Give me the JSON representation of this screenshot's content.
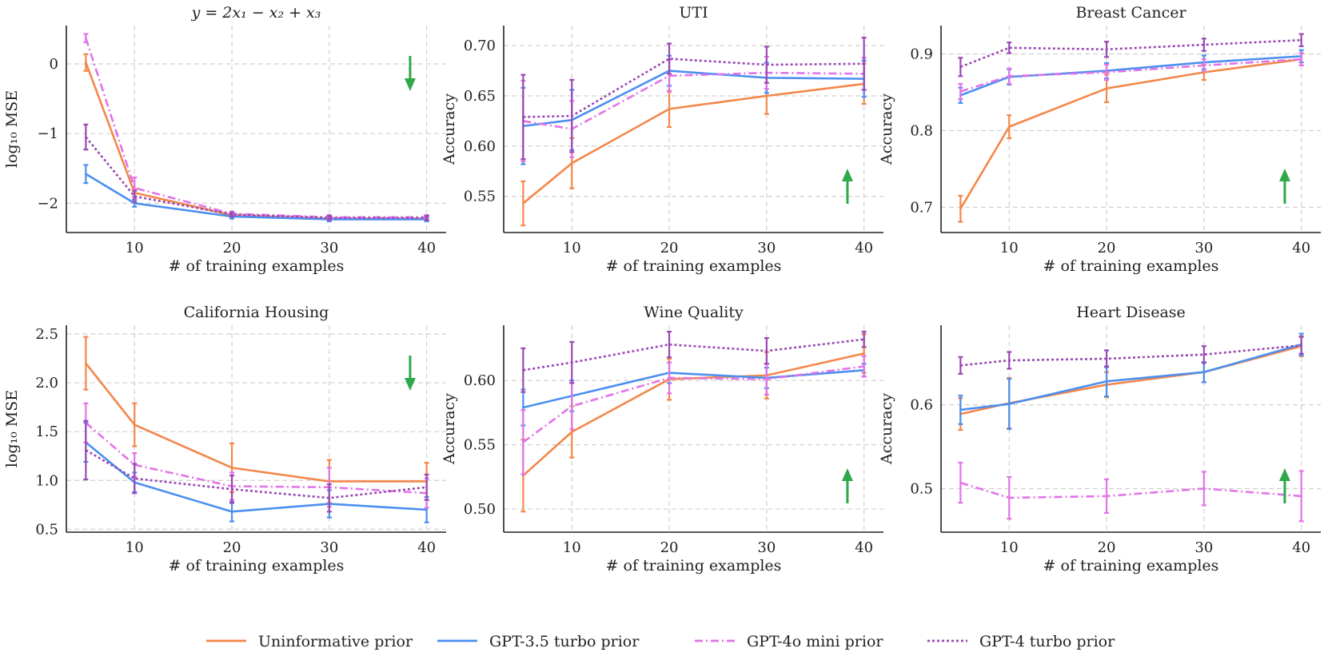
{
  "colors": {
    "uninformative": "#f4874b",
    "gpt35": "#4c8ff0",
    "gpt4omini": "#e273e8",
    "gpt4turbo": "#9a49b4",
    "arrow": "#2ea84a"
  },
  "legend": [
    {
      "key": "uninformative",
      "label": "Uninformative prior",
      "dash": "solid"
    },
    {
      "key": "gpt35",
      "label": "GPT-3.5 turbo prior",
      "dash": "solid"
    },
    {
      "key": "gpt4omini",
      "label": "GPT-4o mini prior",
      "dash": "dashdot"
    },
    {
      "key": "gpt4turbo",
      "label": "GPT-4 turbo prior",
      "dash": "dotted"
    }
  ],
  "chart_data": [
    {
      "type": "line",
      "title": "y = 2x₁ − x₂ + x₃",
      "xlabel": "# of training examples",
      "ylabel": "log₁₀ MSE",
      "x": [
        5,
        10,
        20,
        30,
        40
      ],
      "xlim": [
        3,
        42
      ],
      "xticks": [
        10,
        20,
        30,
        40
      ],
      "ylim": [
        -2.42,
        0.55
      ],
      "yticks": [
        0,
        -1,
        -2
      ],
      "ytick_labels": [
        "0",
        "−1",
        "−2"
      ],
      "arrow": "down",
      "series": [
        {
          "key": "uninformative",
          "values": [
            0.02,
            -1.85,
            -2.17,
            -2.22,
            -2.22
          ],
          "err": [
            0.12,
            0.05,
            0.03,
            0.03,
            0.03
          ]
        },
        {
          "key": "gpt35",
          "values": [
            -1.58,
            -2.0,
            -2.19,
            -2.23,
            -2.23
          ],
          "err": [
            0.13,
            0.05,
            0.03,
            0.03,
            0.03
          ]
        },
        {
          "key": "gpt4omini",
          "values": [
            0.37,
            -1.78,
            -2.15,
            -2.2,
            -2.2
          ],
          "err": [
            0.06,
            0.15,
            0.03,
            0.03,
            0.03
          ]
        },
        {
          "key": "gpt4turbo",
          "values": [
            -1.05,
            -1.9,
            -2.16,
            -2.21,
            -2.21
          ],
          "err": [
            0.18,
            0.08,
            0.03,
            0.03,
            0.03
          ]
        }
      ]
    },
    {
      "type": "line",
      "title": "UTI",
      "xlabel": "# of training examples",
      "ylabel": "Accuracy",
      "x": [
        5,
        10,
        20,
        30,
        40
      ],
      "xlim": [
        3,
        42
      ],
      "xticks": [
        10,
        20,
        30,
        40
      ],
      "ylim": [
        0.514,
        0.72
      ],
      "yticks": [
        0.55,
        0.6,
        0.65,
        0.7
      ],
      "ytick_labels": [
        "0.55",
        "0.60",
        "0.65",
        "0.70"
      ],
      "arrow": "up",
      "series": [
        {
          "key": "uninformative",
          "values": [
            0.543,
            0.583,
            0.637,
            0.65,
            0.662
          ],
          "err": [
            0.022,
            0.025,
            0.018,
            0.018,
            0.02
          ]
        },
        {
          "key": "gpt35",
          "values": [
            0.62,
            0.626,
            0.675,
            0.668,
            0.667
          ],
          "err": [
            0.038,
            0.03,
            0.015,
            0.015,
            0.018
          ]
        },
        {
          "key": "gpt4omini",
          "values": [
            0.625,
            0.617,
            0.67,
            0.673,
            0.672
          ],
          "err": [
            0.04,
            0.028,
            0.016,
            0.016,
            0.016
          ]
        },
        {
          "key": "gpt4turbo",
          "values": [
            0.629,
            0.63,
            0.687,
            0.681,
            0.682
          ],
          "err": [
            0.042,
            0.036,
            0.015,
            0.018,
            0.026
          ]
        }
      ]
    },
    {
      "type": "line",
      "title": "Breast Cancer",
      "xlabel": "# of training examples",
      "ylabel": "Accuracy",
      "x": [
        5,
        10,
        20,
        30,
        40
      ],
      "xlim": [
        3,
        42
      ],
      "xticks": [
        10,
        20,
        30,
        40
      ],
      "ylim": [
        0.667,
        0.937
      ],
      "yticks": [
        0.7,
        0.8,
        0.9
      ],
      "ytick_labels": [
        "0.7",
        "0.8",
        "0.9"
      ],
      "arrow": "up",
      "series": [
        {
          "key": "uninformative",
          "values": [
            0.698,
            0.805,
            0.855,
            0.876,
            0.893
          ],
          "err": [
            0.017,
            0.015,
            0.018,
            0.01,
            0.008
          ]
        },
        {
          "key": "gpt35",
          "values": [
            0.846,
            0.87,
            0.878,
            0.889,
            0.897
          ],
          "err": [
            0.01,
            0.01,
            0.01,
            0.009,
            0.008
          ]
        },
        {
          "key": "gpt4omini",
          "values": [
            0.851,
            0.871,
            0.876,
            0.885,
            0.893
          ],
          "err": [
            0.01,
            0.01,
            0.01,
            0.008,
            0.008
          ]
        },
        {
          "key": "gpt4turbo",
          "values": [
            0.883,
            0.908,
            0.906,
            0.912,
            0.918
          ],
          "err": [
            0.012,
            0.007,
            0.01,
            0.008,
            0.008
          ]
        }
      ]
    },
    {
      "type": "line",
      "title": "California Housing",
      "xlabel": "# of training examples",
      "ylabel": "log₁₀ MSE",
      "x": [
        5,
        10,
        20,
        30,
        40
      ],
      "xlim": [
        3,
        42
      ],
      "xticks": [
        10,
        20,
        30,
        40
      ],
      "ylim": [
        0.47,
        2.59
      ],
      "yticks": [
        0.5,
        1.0,
        1.5,
        2.0,
        2.5
      ],
      "ytick_labels": [
        "0.5",
        "1.0",
        "1.5",
        "2.0",
        "2.5"
      ],
      "arrow": "down",
      "series": [
        {
          "key": "uninformative",
          "values": [
            2.2,
            1.57,
            1.13,
            0.99,
            0.99
          ],
          "err": [
            0.27,
            0.22,
            0.25,
            0.22,
            0.19
          ]
        },
        {
          "key": "gpt35",
          "values": [
            1.39,
            0.98,
            0.68,
            0.76,
            0.7
          ],
          "err": [
            0.2,
            0.1,
            0.1,
            0.14,
            0.13
          ]
        },
        {
          "key": "gpt4omini",
          "values": [
            1.59,
            1.16,
            0.94,
            0.93,
            0.87
          ],
          "err": [
            0.2,
            0.12,
            0.14,
            0.2,
            0.15
          ]
        },
        {
          "key": "gpt4turbo",
          "values": [
            1.31,
            1.02,
            0.91,
            0.82,
            0.93
          ],
          "err": [
            0.3,
            0.15,
            0.14,
            0.14,
            0.13
          ]
        }
      ]
    },
    {
      "type": "line",
      "title": "Wine Quality",
      "xlabel": "# of training examples",
      "ylabel": "Accuracy",
      "x": [
        5,
        10,
        20,
        30,
        40
      ],
      "xlim": [
        3,
        42
      ],
      "xticks": [
        10,
        20,
        30,
        40
      ],
      "ylim": [
        0.482,
        0.643
      ],
      "yticks": [
        0.5,
        0.55,
        0.6
      ],
      "ytick_labels": [
        "0.50",
        "0.55",
        "0.60"
      ],
      "arrow": "up",
      "series": [
        {
          "key": "uninformative",
          "values": [
            0.526,
            0.56,
            0.601,
            0.604,
            0.621
          ],
          "err": [
            0.028,
            0.02,
            0.016,
            0.018,
            0.015
          ]
        },
        {
          "key": "gpt35",
          "values": [
            0.579,
            0.588,
            0.606,
            0.602,
            0.608
          ],
          "err": [
            0.014,
            0.012,
            0.008,
            0.008,
            0.005
          ]
        },
        {
          "key": "gpt4omini",
          "values": [
            0.552,
            0.58,
            0.602,
            0.601,
            0.611
          ],
          "err": [
            0.025,
            0.018,
            0.012,
            0.012,
            0.008
          ]
        },
        {
          "key": "gpt4turbo",
          "values": [
            0.608,
            0.614,
            0.628,
            0.623,
            0.632
          ],
          "err": [
            0.017,
            0.016,
            0.01,
            0.01,
            0.006
          ]
        }
      ]
    },
    {
      "type": "line",
      "title": "Heart Disease",
      "xlabel": "# of training examples",
      "ylabel": "Accuracy",
      "x": [
        5,
        10,
        20,
        30,
        40
      ],
      "xlim": [
        3,
        42
      ],
      "xticks": [
        10,
        20,
        30,
        40
      ],
      "ylim": [
        0.448,
        0.695
      ],
      "yticks": [
        0.5,
        0.6
      ],
      "ytick_labels": [
        "0.5",
        "0.6"
      ],
      "arrow": "up",
      "series": [
        {
          "key": "uninformative",
          "values": [
            0.589,
            0.602,
            0.624,
            0.639,
            0.67
          ],
          "err": [
            0.019,
            0.03,
            0.015,
            0.012,
            0.012
          ]
        },
        {
          "key": "gpt35",
          "values": [
            0.594,
            0.601,
            0.628,
            0.639,
            0.672
          ],
          "err": [
            0.017,
            0.03,
            0.018,
            0.012,
            0.013
          ]
        },
        {
          "key": "gpt4omini",
          "values": [
            0.507,
            0.489,
            0.491,
            0.5,
            0.491
          ],
          "err": [
            0.024,
            0.025,
            0.02,
            0.02,
            0.03
          ]
        },
        {
          "key": "gpt4turbo",
          "values": [
            0.647,
            0.653,
            0.655,
            0.66,
            0.671
          ],
          "err": [
            0.01,
            0.01,
            0.01,
            0.01,
            0.01
          ]
        }
      ]
    }
  ]
}
